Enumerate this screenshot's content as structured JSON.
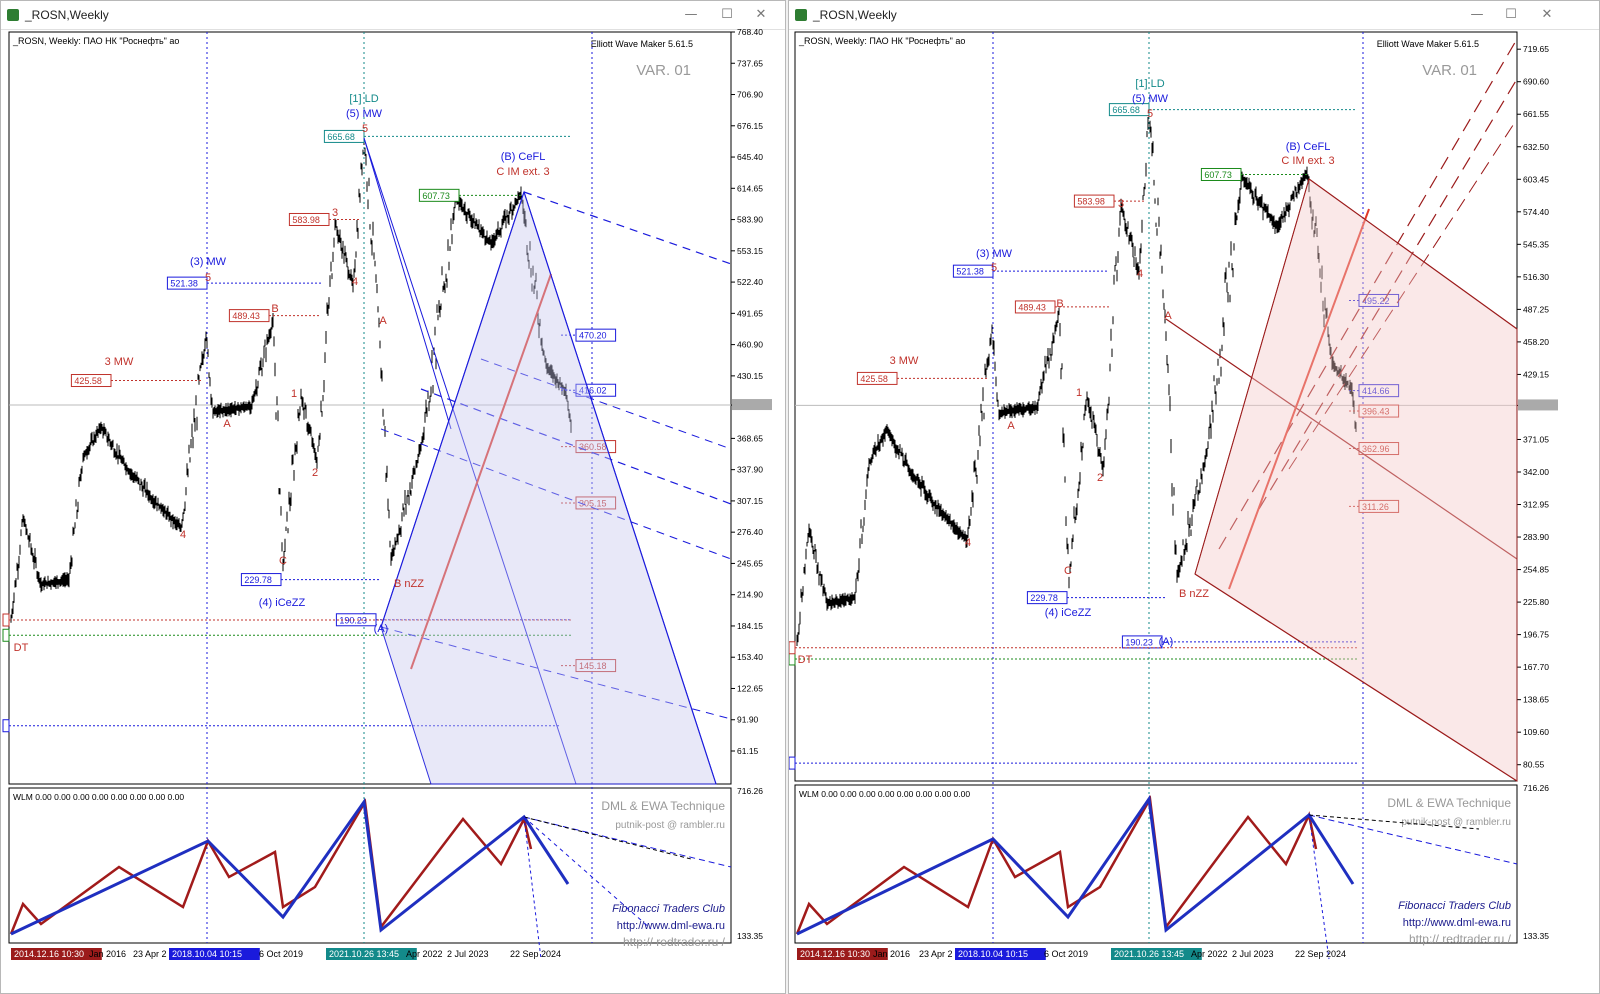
{
  "windows": [
    {
      "title": "_ROSN,Weekly",
      "chart_header": "_ROSN, Weekly:  ПАО НК \"Роснефть\" ао",
      "indicator_name": "Elliott Wave Maker 5.61.5",
      "variant": "VAR. 01",
      "price_axis": [
        "768.40",
        "737.65",
        "706.90",
        "676.15",
        "645.40",
        "614.65",
        "583.90",
        "553.15",
        "522.40",
        "491.65",
        "460.90",
        "430.15",
        "401.45",
        "368.65",
        "337.90",
        "307.15",
        "276.40",
        "245.65",
        "214.90",
        "184.15",
        "153.40",
        "122.65",
        "91.90",
        "61.15"
      ],
      "level_boxes": [
        "665.68",
        "607.73",
        "583.98",
        "521.38",
        "489.43",
        "425.58",
        "229.78",
        "190.23",
        "470.20",
        "416.02",
        "360.58",
        "305.15",
        "145.18"
      ],
      "wave_labels": [
        "[1] LD",
        "(5) MW",
        "(3) MW",
        "3 MW",
        "(B) CeFL",
        "C IM ext. 3",
        "(4) iCeZZ",
        "B nZZ",
        "(A)",
        "DT"
      ],
      "subwindow": {
        "title": "WLM 0.00 0.00 0.00 0.00 0.00 0.00 0.00 0.00",
        "axis_top": "716.26",
        "axis_bottom": "133.35",
        "credit1": "DML & EWA Technique",
        "credit2": "putnik-post @ rambler.ru",
        "credit3": "Fibonacci   Traders   Club",
        "credit4": "http://www.dml-ewa.ru",
        "credit5": "http://  redtrader.ru  /"
      },
      "time_axis": [
        "2014.12.16 10:30",
        "Jan 2016",
        "23 Apr 2",
        "2018.10.04 10:15",
        "6 Oct 2019",
        "2021.10.26 13:45",
        "Apr 2022",
        "2 Jul 2023",
        "22 Sep 2024"
      ]
    },
    {
      "title": "_ROSN,Weekly",
      "chart_header": "_ROSN, Weekly:  ПАО НК \"Роснефть\" ао",
      "indicator_name": "Elliott Wave Maker 5.61.5",
      "variant": "VAR. 01",
      "price_axis": [
        "719.65",
        "690.60",
        "661.55",
        "632.50",
        "603.45",
        "574.40",
        "545.35",
        "516.30",
        "487.25",
        "458.20",
        "429.15",
        "401.45",
        "371.05",
        "342.00",
        "312.95",
        "283.90",
        "254.85",
        "225.80",
        "196.75",
        "167.70",
        "138.65",
        "109.60",
        "80.55"
      ],
      "level_boxes": [
        "665.68",
        "607.73",
        "583.98",
        "521.38",
        "489.43",
        "425.58",
        "229.78",
        "190.23",
        "495.22",
        "414.66",
        "396.43",
        "362.96",
        "311.26"
      ],
      "wave_labels": [
        "[1] LD",
        "(5) MW",
        "(3) MW",
        "3 MW",
        "(B) CeFL",
        "C IM ext. 3",
        "(4) iCeZZ",
        "B nZZ",
        "(A)",
        "DT"
      ],
      "subwindow": {
        "title": "WLM 0.00 0.00 0.00 0.00 0.00 0.00 0.00 0.00",
        "axis_top": "716.26",
        "axis_bottom": "133.35",
        "credit1": "DML & EWA Technique",
        "credit2": "putnik-post @ rambler.ru",
        "credit3": "Fibonacci   Traders   Club",
        "credit4": "http://www.dml-ewa.ru",
        "credit5": "http://  redtrader.ru  /"
      },
      "time_axis": [
        "2014.12.16 10:30",
        "Jan 2016",
        "23 Apr 2",
        "2018.10.04 10:15",
        "6 Oct 2019",
        "2021.10.26 13:45",
        "Apr 2022",
        "2 Jul 2023",
        "22 Sep 2024"
      ]
    }
  ],
  "colors": {
    "blue": "#1a1adc",
    "red": "#c0322b",
    "green": "#1a8a1a",
    "teal": "#138a8a",
    "dark_red": "#9b1b1b"
  },
  "window_controls": [
    "minimize-icon",
    "maximize-icon",
    "close-icon"
  ]
}
